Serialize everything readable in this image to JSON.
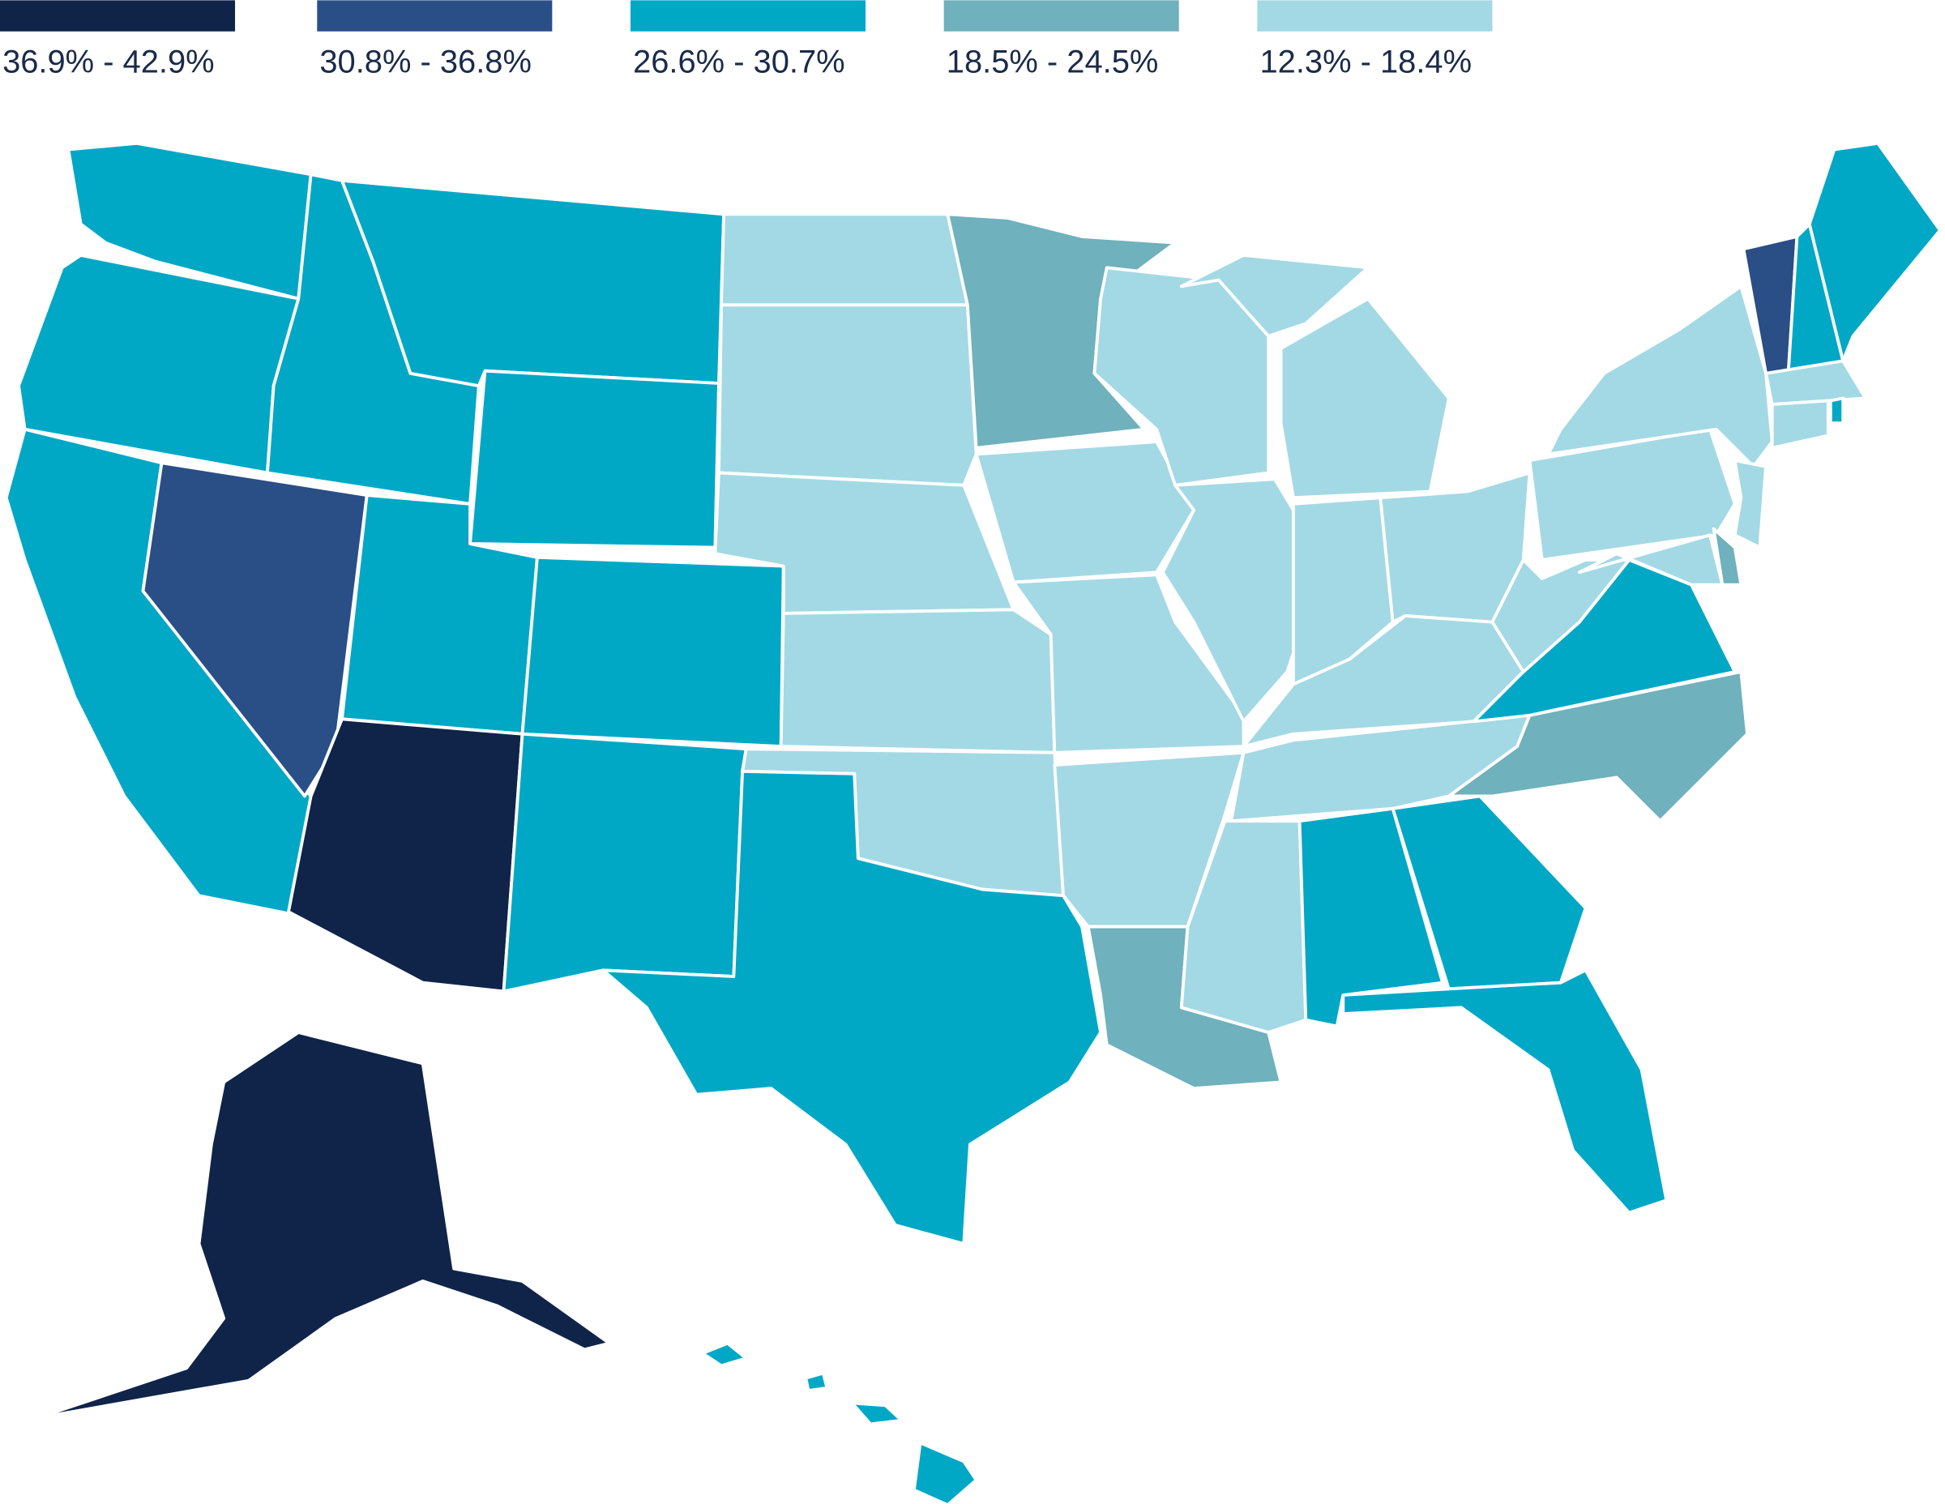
{
  "legend": [
    {
      "label": "36.9% - 42.9%",
      "color": "#10244a"
    },
    {
      "label": "30.8% - 36.8%",
      "color": "#2a4e86"
    },
    {
      "label": "26.6% - 30.7%",
      "color": "#00a8c6"
    },
    {
      "label": "18.5% - 24.5%",
      "color": "#6fb1bc"
    },
    {
      "label": "12.3% - 18.4%",
      "color": "#a3d9e4"
    }
  ],
  "regions": [
    2,
    2,
    2,
    1,
    2,
    2,
    2,
    2,
    0,
    2,
    2,
    4,
    4,
    4,
    4,
    4,
    2,
    3,
    4,
    4,
    4,
    3,
    4,
    4,
    4,
    4,
    4,
    4,
    4,
    4,
    4,
    2,
    2,
    2,
    3,
    2,
    4,
    4,
    4,
    1,
    2,
    2,
    4,
    4,
    2,
    4,
    3,
    4,
    0,
    2,
    2,
    2,
    2
  ]
}
